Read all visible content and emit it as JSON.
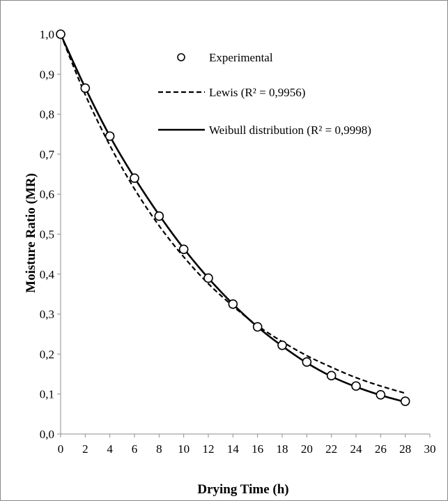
{
  "chart_data": {
    "type": "scatter",
    "xlabel": "Drying Time (h)",
    "ylabel": "Moisture Ratio (MR)",
    "xlim": [
      0,
      30
    ],
    "ylim": [
      0,
      1
    ],
    "x_ticks": [
      0,
      2,
      4,
      6,
      8,
      10,
      12,
      14,
      16,
      18,
      20,
      22,
      24,
      26,
      28,
      30
    ],
    "x_tick_labels": [
      "0",
      "2",
      "4",
      "6",
      "8",
      "10",
      "12",
      "14",
      "16",
      "18",
      "20",
      "22",
      "24",
      "26",
      "28",
      "30"
    ],
    "y_ticks": [
      0,
      0.1,
      0.2,
      0.3,
      0.4,
      0.5,
      0.6,
      0.7,
      0.8,
      0.9,
      1.0
    ],
    "y_tick_labels": [
      "0,0",
      "0,1",
      "0,2",
      "0,3",
      "0,4",
      "0,5",
      "0,6",
      "0,7",
      "0,8",
      "0,9",
      "1,0"
    ],
    "grid": false,
    "legend_position": "top-right",
    "series": [
      {
        "name": "Experimental",
        "style": "marker-circle-open",
        "x": [
          0,
          2,
          4,
          6,
          8,
          10,
          12,
          14,
          16,
          18,
          20,
          22,
          24,
          26,
          28
        ],
        "y": [
          1.0,
          0.865,
          0.745,
          0.64,
          0.545,
          0.462,
          0.39,
          0.325,
          0.268,
          0.222,
          0.18,
          0.146,
          0.12,
          0.098,
          0.082
        ]
      },
      {
        "name": "Lewis (R² = 0,9956)",
        "style": "line-dashed",
        "x": [
          0,
          2,
          4,
          6,
          8,
          10,
          12,
          14,
          16,
          18,
          20,
          22,
          24,
          26,
          28
        ],
        "y": [
          1.0,
          0.849,
          0.722,
          0.613,
          0.521,
          0.443,
          0.376,
          0.32,
          0.271,
          0.231,
          0.196,
          0.167,
          0.141,
          0.12,
          0.102
        ]
      },
      {
        "name": "Weibull distribution (R² = 0,9998)",
        "style": "line-solid",
        "x": [
          0,
          2,
          4,
          6,
          8,
          10,
          12,
          14,
          16,
          18,
          20,
          22,
          24,
          26,
          28
        ],
        "y": [
          1.0,
          0.866,
          0.745,
          0.641,
          0.548,
          0.464,
          0.39,
          0.325,
          0.268,
          0.22,
          0.178,
          0.144,
          0.118,
          0.097,
          0.08
        ]
      }
    ]
  }
}
